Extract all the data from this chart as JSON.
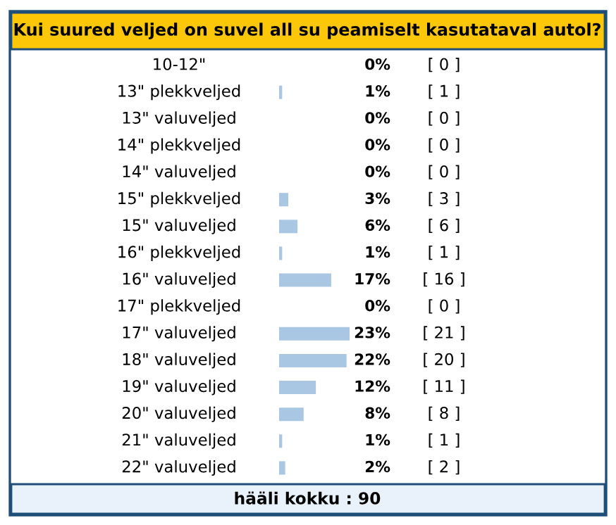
{
  "chart_data": {
    "type": "bar",
    "orientation": "horizontal",
    "title": "Kui suured veljed on suvel all su peamiselt kasutataval autol?",
    "categories": [
      "10-12\"",
      "13\" plekkveljed",
      "13\" valuveljed",
      "14\" plekkveljed",
      "14\" valuveljed",
      "15\" plekkveljed",
      "15\" valuveljed",
      "16\" plekkveljed",
      "16\" valuveljed",
      "17\" plekkveljed",
      "17\" valuveljed",
      "18\" valuveljed",
      "19\" valuveljed",
      "20\" valuveljed",
      "21\" valuveljed",
      "22\" valuveljed"
    ],
    "values": [
      0,
      1,
      0,
      0,
      0,
      3,
      6,
      1,
      17,
      0,
      23,
      22,
      12,
      8,
      1,
      2
    ],
    "value_labels": [
      "0%",
      "1%",
      "0%",
      "0%",
      "0%",
      "3%",
      "6%",
      "1%",
      "17%",
      "0%",
      "23%",
      "22%",
      "12%",
      "8%",
      "1%",
      "2%"
    ],
    "color": "#a9c6e3",
    "annotations": [
      "[ 0 ]",
      "[ 1 ]",
      "[ 0 ]",
      "[ 0 ]",
      "[ 0 ]",
      "[ 3 ]",
      "[ 6 ]",
      "[ 1 ]",
      "[ 16 ]",
      "[ 0 ]",
      "[ 21 ]",
      "[ 20 ]",
      "[ 11 ]",
      "[ 8 ]",
      "[ 1 ]",
      "[ 2 ]",
      "hääli kokku : 90"
    ]
  }
}
